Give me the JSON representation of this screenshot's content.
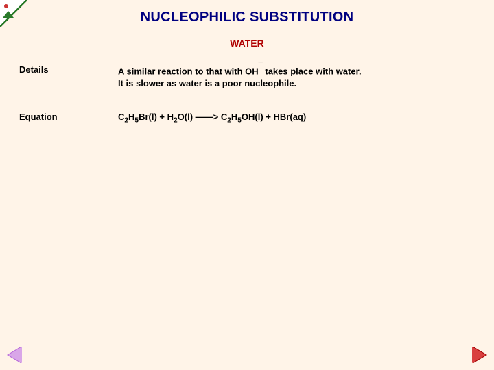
{
  "title": "NUCLEOPHILIC SUBSTITUTION",
  "subtitle": "WATER",
  "colors": {
    "background": "#fff4e8",
    "title": "#000080",
    "subtitle": "#b00000",
    "text": "#000000",
    "nav_prev": "#b566d9",
    "nav_next": "#d94040"
  },
  "fonts": {
    "title_size": 20,
    "subtitle_size": 14,
    "body_size": 13
  },
  "rows": {
    "details": {
      "label": "Details",
      "line1_pre": "A similar reaction to that with OH",
      "line1_sup": "¯",
      "line1_post": " takes place with water.",
      "line2": "It is slower as water is a poor nucleophile."
    },
    "equation": {
      "label": "Equation",
      "r1_c": "C",
      "r1_s1": "2",
      "r1_h": "H",
      "r1_s2": "5",
      "r1_tail": "Br(l)",
      "plus1": "   +   ",
      "r2_h": "H",
      "r2_s1": "2",
      "r2_tail": "O(l)",
      "arrow": "   ——>   ",
      "p1_c": "C",
      "p1_s1": "2",
      "p1_h": "H",
      "p1_s2": "5",
      "p1_tail": "OH(l)",
      "plus2": "   +    ",
      "p2": "HBr(aq)"
    }
  }
}
